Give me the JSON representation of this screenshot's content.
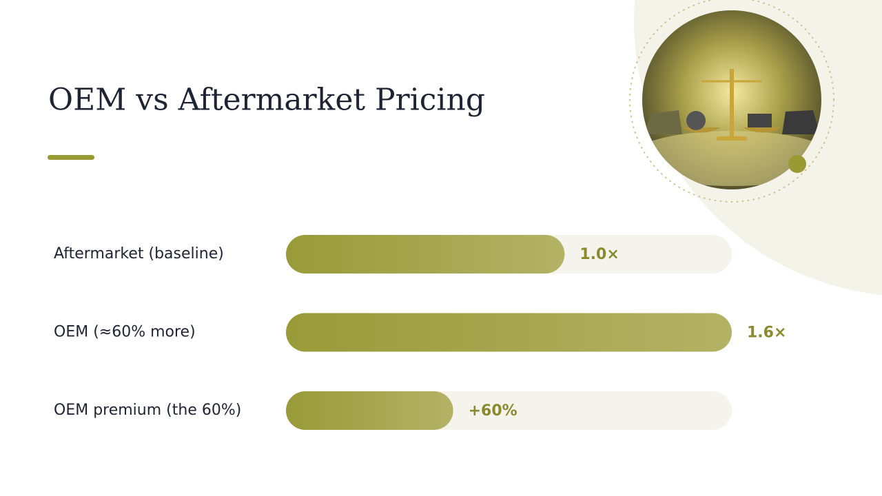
{
  "chart_data": {
    "type": "bar",
    "orientation": "horizontal",
    "title": "OEM vs Aftermarket Pricing",
    "categories": [
      "Aftermarket (baseline)",
      "OEM (≈60% more)",
      "OEM premium (the 60%)"
    ],
    "values": [
      1.0,
      1.6,
      0.6
    ],
    "value_labels": [
      "1.0×",
      "1.6×",
      "+60%"
    ],
    "color": "#999a38",
    "track_color": "#f4f3ec",
    "xlim": [
      0,
      1.6
    ]
  }
}
